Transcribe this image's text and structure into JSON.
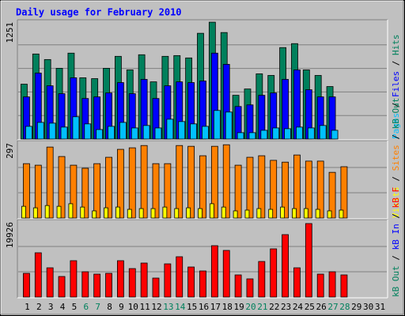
{
  "title": "Daily usage for February 2010",
  "categories": [
    "1",
    "2",
    "3",
    "4",
    "5",
    "6",
    "7",
    "8",
    "9",
    "10",
    "11",
    "12",
    "13",
    "14",
    "15",
    "16",
    "17",
    "18",
    "19",
    "20",
    "21",
    "22",
    "23",
    "24",
    "25",
    "26",
    "27",
    "28",
    "29",
    "30",
    "31"
  ],
  "category_colors": [
    "#000000",
    "#000000",
    "#000000",
    "#000000",
    "#000000",
    "#00805c",
    "#00805c",
    "#000000",
    "#000000",
    "#000000",
    "#000000",
    "#000000",
    "#00805c",
    "#00805c",
    "#000000",
    "#000000",
    "#000000",
    "#000000",
    "#000000",
    "#00805c",
    "#00805c",
    "#000000",
    "#000000",
    "#000000",
    "#000000",
    "#000000",
    "#00805c",
    "#00805c",
    "#000000",
    "#000000",
    "#000000"
  ],
  "chart_data": [
    {
      "type": "bar",
      "ylim": [
        0,
        1251
      ],
      "yticks": [
        1251
      ],
      "series": [
        {
          "name": "Hits",
          "color": "#00805c",
          "values": [
            583,
            904,
            845,
            752,
            913,
            651,
            642,
            752,
            879,
            735,
            896,
            608,
            879,
            887,
            862,
            1124,
            1242,
            1132,
            465,
            532,
            693,
            676,
            972,
            1014,
            735,
            676,
            558,
            null,
            null,
            null,
            null
          ]
        },
        {
          "name": "Files",
          "color": "#0000ff",
          "values": [
            448,
            701,
            566,
            482,
            651,
            431,
            448,
            490,
            600,
            482,
            634,
            431,
            566,
            608,
            600,
            617,
            913,
            794,
            346,
            363,
            465,
            490,
            634,
            735,
            524,
            448,
            448,
            null,
            null,
            null,
            null
          ]
        },
        {
          "name": "Pages",
          "color": "#00c0ff",
          "values": [
            135,
            177,
            169,
            127,
            237,
            161,
            101,
            135,
            177,
            118,
            144,
            118,
            211,
            186,
            161,
            135,
            304,
            287,
            68,
            68,
            93,
            118,
            110,
            127,
            118,
            144,
            93,
            null,
            null,
            null,
            null
          ]
        }
      ]
    },
    {
      "type": "bar",
      "ylim": [
        0,
        297
      ],
      "yticks": [
        297
      ],
      "series": [
        {
          "name": "kB Out",
          "color": "#00805c",
          "values": [
            null,
            null,
            null,
            null,
            null,
            null,
            null,
            null,
            null,
            null,
            null,
            null,
            null,
            null,
            null,
            null,
            null,
            null,
            null,
            null,
            null,
            null,
            null,
            null,
            null,
            null,
            null,
            null,
            null,
            null,
            null
          ]
        },
        {
          "name": "Sites",
          "color": "#ff8000",
          "values": [
            213,
            207,
            278,
            241,
            207,
            195,
            213,
            238,
            269,
            275,
            284,
            213,
            213,
            284,
            281,
            244,
            281,
            287,
            207,
            238,
            244,
            226,
            219,
            247,
            223,
            223,
            179,
            201,
            null,
            null,
            null
          ]
        },
        {
          "name": "Visits",
          "color": "#ffff00",
          "values": [
            46,
            40,
            49,
            46,
            56,
            43,
            28,
            40,
            43,
            34,
            37,
            37,
            43,
            37,
            40,
            37,
            56,
            43,
            28,
            31,
            37,
            34,
            43,
            37,
            37,
            34,
            28,
            31,
            null,
            null,
            null
          ]
        }
      ]
    },
    {
      "type": "bar",
      "ylim": [
        0,
        19926
      ],
      "yticks": [
        19926
      ],
      "series": [
        {
          "name": "kB F",
          "color": "#ff0000",
          "values": [
            6228,
            11626,
            7681,
            5398,
            9550,
            6643,
            6020,
            6228,
            9550,
            7474,
            8927,
            4982,
            8719,
            10588,
            7889,
            6851,
            13494,
            12249,
            5813,
            4775,
            9342,
            12664,
            16400,
            7681,
            19307,
            6020,
            6643,
            5813,
            null,
            null,
            null
          ]
        },
        {
          "name": "kB In",
          "color": "#0000ff",
          "values": [
            null,
            null,
            null,
            null,
            null,
            null,
            null,
            null,
            null,
            null,
            null,
            null,
            null,
            null,
            null,
            null,
            null,
            null,
            null,
            null,
            null,
            null,
            null,
            null,
            null,
            null,
            null,
            null,
            null,
            null,
            null
          ]
        },
        {
          "name": "kB Out",
          "color": "#00805c",
          "values": [
            null,
            null,
            null,
            null,
            null,
            null,
            null,
            null,
            null,
            null,
            null,
            null,
            null,
            null,
            null,
            null,
            null,
            null,
            null,
            null,
            null,
            null,
            null,
            null,
            null,
            null,
            null,
            null,
            null,
            null,
            null
          ]
        }
      ]
    }
  ]
}
